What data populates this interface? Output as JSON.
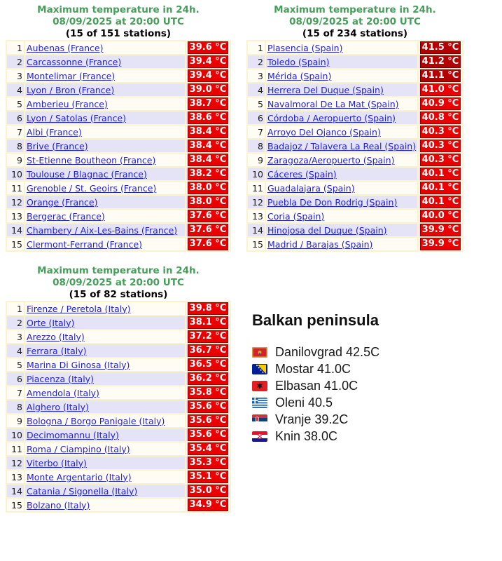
{
  "colors": {
    "title_green": "#469e5a",
    "link_blue": "#2222cc",
    "hot_red": "#ea0000",
    "very_hot_dark_red": "#b30000",
    "row_cream": "#fffdf3",
    "row_lavender": "#e4e4f6",
    "table_background": "#fbf3cf",
    "badge_text": "#ffffff"
  },
  "tables": [
    {
      "country": "france",
      "title_line1": "Maximum temperature in 24h.",
      "title_line2": "08/09/2025 at 20:00 UTC",
      "title_line3": "(15 of 151 stations)",
      "rows": [
        {
          "rank": 1,
          "station": "Aubenas (France)",
          "temp": "39.6 °C",
          "level": "hot"
        },
        {
          "rank": 2,
          "station": "Carcassonne (France)",
          "temp": "39.4 °C",
          "level": "hot"
        },
        {
          "rank": 3,
          "station": "Montelimar (France)",
          "temp": "39.4 °C",
          "level": "hot"
        },
        {
          "rank": 4,
          "station": "Lyon / Bron (France)",
          "temp": "39.0 °C",
          "level": "hot"
        },
        {
          "rank": 5,
          "station": "Amberieu (France)",
          "temp": "38.7 °C",
          "level": "hot"
        },
        {
          "rank": 6,
          "station": "Lyon / Satolas (France)",
          "temp": "38.6 °C",
          "level": "hot"
        },
        {
          "rank": 7,
          "station": "Albi (France)",
          "temp": "38.4 °C",
          "level": "hot"
        },
        {
          "rank": 8,
          "station": "Brive (France)",
          "temp": "38.4 °C",
          "level": "hot"
        },
        {
          "rank": 9,
          "station": "St-Etienne Boutheon (France)",
          "temp": "38.4 °C",
          "level": "hot"
        },
        {
          "rank": 10,
          "station": "Toulouse / Blagnac (France)",
          "temp": "38.2 °C",
          "level": "hot"
        },
        {
          "rank": 11,
          "station": "Grenoble / St. Geoirs (France)",
          "temp": "38.0 °C",
          "level": "hot"
        },
        {
          "rank": 12,
          "station": "Orange (France)",
          "temp": "38.0 °C",
          "level": "hot"
        },
        {
          "rank": 13,
          "station": "Bergerac (France)",
          "temp": "37.6 °C",
          "level": "hot"
        },
        {
          "rank": 14,
          "station": "Chambery / Aix-Les-Bains (France)",
          "temp": "37.6 °C",
          "level": "hot"
        },
        {
          "rank": 15,
          "station": "Clermont-Ferrand (France)",
          "temp": "37.6 °C",
          "level": "hot"
        }
      ]
    },
    {
      "country": "spain",
      "title_line1": "Maximum temperature in 24h.",
      "title_line2": "08/09/2025 at 20:00 UTC",
      "title_line3": "(15 of 234 stations)",
      "rows": [
        {
          "rank": 1,
          "station": "Plasencia (Spain)",
          "temp": "41.5 °C",
          "level": "very-hot"
        },
        {
          "rank": 2,
          "station": "Toledo (Spain)",
          "temp": "41.2 °C",
          "level": "very-hot"
        },
        {
          "rank": 3,
          "station": "Mérida (Spain)",
          "temp": "41.1 °C",
          "level": "very-hot"
        },
        {
          "rank": 4,
          "station": "Herrera Del Duque (Spain)",
          "temp": "41.0 °C",
          "level": "hot"
        },
        {
          "rank": 5,
          "station": "Navalmoral De La Mat (Spain)",
          "temp": "40.9 °C",
          "level": "hot"
        },
        {
          "rank": 6,
          "station": "Córdoba / Aeropuerto (Spain)",
          "temp": "40.8 °C",
          "level": "hot"
        },
        {
          "rank": 7,
          "station": "Arroyo Del Ojanco (Spain)",
          "temp": "40.3 °C",
          "level": "hot"
        },
        {
          "rank": 8,
          "station": "Badajoz / Talavera La Real (Spain)",
          "temp": "40.3 °C",
          "level": "hot"
        },
        {
          "rank": 9,
          "station": "Zaragoza/Aeropuerto (Spain)",
          "temp": "40.3 °C",
          "level": "hot"
        },
        {
          "rank": 10,
          "station": "Cáceres (Spain)",
          "temp": "40.1 °C",
          "level": "hot"
        },
        {
          "rank": 11,
          "station": "Guadalajara (Spain)",
          "temp": "40.1 °C",
          "level": "hot"
        },
        {
          "rank": 12,
          "station": "Puebla De Don Rodrig (Spain)",
          "temp": "40.1 °C",
          "level": "hot"
        },
        {
          "rank": 13,
          "station": "Coria (Spain)",
          "temp": "40.0 °C",
          "level": "hot"
        },
        {
          "rank": 14,
          "station": "Hinojosa del Duque (Spain)",
          "temp": "39.9 °C",
          "level": "hot"
        },
        {
          "rank": 15,
          "station": "Madrid / Barajas (Spain)",
          "temp": "39.9 °C",
          "level": "hot"
        }
      ]
    },
    {
      "country": "italy",
      "title_line1": "Maximum temperature in 24h.",
      "title_line2": "08/09/2025 at 20:00 UTC",
      "title_line3": "(15 of 82 stations)",
      "rows": [
        {
          "rank": 1,
          "station": "Firenze / Peretola (Italy)",
          "temp": "39.8 °C",
          "level": "hot"
        },
        {
          "rank": 2,
          "station": "Orte (Italy)",
          "temp": "38.1 °C",
          "level": "hot"
        },
        {
          "rank": 3,
          "station": "Arezzo (Italy)",
          "temp": "37.2 °C",
          "level": "hot"
        },
        {
          "rank": 4,
          "station": "Ferrara (Italy)",
          "temp": "36.7 °C",
          "level": "hot"
        },
        {
          "rank": 5,
          "station": "Marina Di Ginosa (Italy)",
          "temp": "36.5 °C",
          "level": "hot"
        },
        {
          "rank": 6,
          "station": "Piacenza (Italy)",
          "temp": "36.2 °C",
          "level": "hot"
        },
        {
          "rank": 7,
          "station": "Amendola (Italy)",
          "temp": "35.8 °C",
          "level": "hot"
        },
        {
          "rank": 8,
          "station": "Alghero (Italy)",
          "temp": "35.6 °C",
          "level": "hot"
        },
        {
          "rank": 9,
          "station": "Bologna / Borgo Panigale (Italy)",
          "temp": "35.6 °C",
          "level": "hot"
        },
        {
          "rank": 10,
          "station": "Decimomannu (Italy)",
          "temp": "35.6 °C",
          "level": "hot"
        },
        {
          "rank": 11,
          "station": "Roma / Ciampino (Italy)",
          "temp": "35.4 °C",
          "level": "hot"
        },
        {
          "rank": 12,
          "station": "Viterbo (Italy)",
          "temp": "35.3 °C",
          "level": "hot"
        },
        {
          "rank": 13,
          "station": "Monte Argentario (Italy)",
          "temp": "35.1 °C",
          "level": "hot"
        },
        {
          "rank": 14,
          "station": "Catania / Sigonella (Italy)",
          "temp": "35.0 °C",
          "level": "hot"
        },
        {
          "rank": 15,
          "station": "Bolzano (Italy)",
          "temp": "34.9 °C",
          "level": "hot"
        }
      ]
    }
  ],
  "balkan": {
    "heading": "Balkan peninsula",
    "items": [
      {
        "flag": "montenegro-flag",
        "text": "Danilovgrad 42.5C"
      },
      {
        "flag": "bosnia-flag",
        "text": "Mostar 41.0C"
      },
      {
        "flag": "albania-flag",
        "text": "Elbasan 41.0C"
      },
      {
        "flag": "greece-flag",
        "text": "Oleni 40.5"
      },
      {
        "flag": "serbia-flag",
        "text": "Vranje 39.2C"
      },
      {
        "flag": "croatia-flag",
        "text": "Knin 38.0C"
      }
    ]
  }
}
